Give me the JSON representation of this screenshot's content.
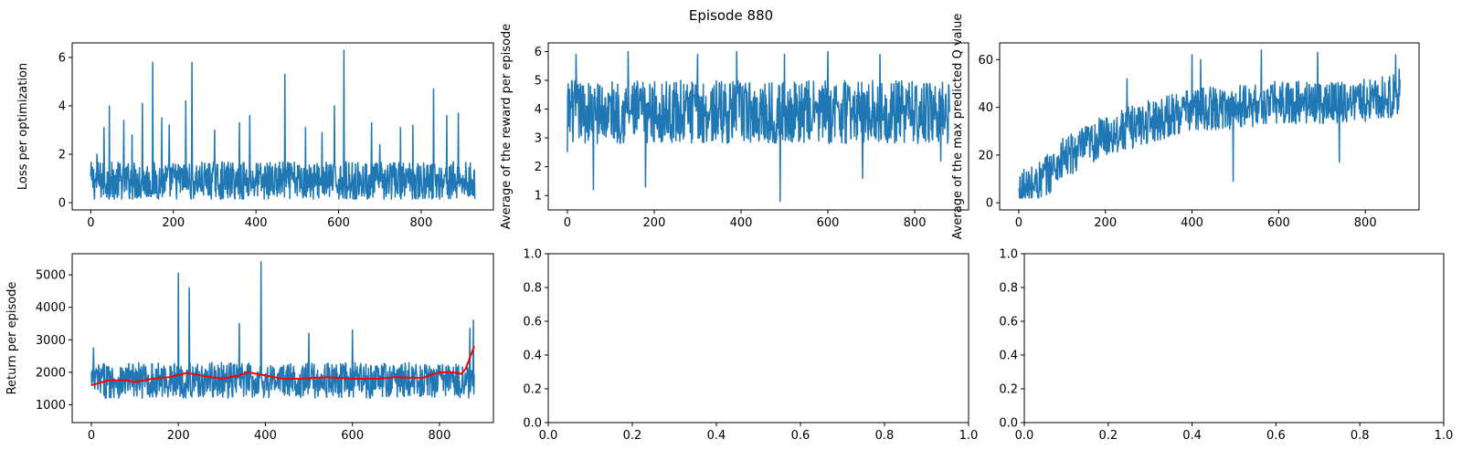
{
  "figure": {
    "suptitle": "Episode 880"
  },
  "colors": {
    "series": "#1f77b4",
    "moving_average": "#ff0000",
    "axis": "#000000"
  },
  "chart_data": [
    {
      "id": "loss",
      "type": "line",
      "title": "",
      "xlabel": "",
      "ylabel": "Loss per optimization",
      "xlim": [
        -45,
        975
      ],
      "ylim": [
        -0.3,
        6.6
      ],
      "xticks": [
        0,
        200,
        400,
        600,
        800
      ],
      "yticks": [
        0,
        2,
        4,
        6
      ],
      "series": [
        {
          "style": "noisy",
          "color": "#1f77b4",
          "x_range": [
            0,
            930
          ],
          "n": 931,
          "baseline": [
            [
              0,
              0.9
            ],
            [
              930,
              0.9
            ]
          ],
          "spread": 0.8,
          "min": 0.15,
          "max": 3.5,
          "spikes": [
            [
              15,
              2.0
            ],
            [
              32,
              3.1
            ],
            [
              45,
              4.0
            ],
            [
              80,
              3.4
            ],
            [
              100,
              2.8
            ],
            [
              125,
              4.1
            ],
            [
              150,
              5.8
            ],
            [
              172,
              3.5
            ],
            [
              190,
              3.2
            ],
            [
              230,
              4.2
            ],
            [
              245,
              5.8
            ],
            [
              300,
              3.0
            ],
            [
              360,
              3.3
            ],
            [
              385,
              3.6
            ],
            [
              470,
              5.3
            ],
            [
              520,
              3.1
            ],
            [
              560,
              2.9
            ],
            [
              590,
              4.0
            ],
            [
              613,
              6.3
            ],
            [
              680,
              3.3
            ],
            [
              700,
              2.4
            ],
            [
              750,
              3.1
            ],
            [
              780,
              3.2
            ],
            [
              830,
              4.7
            ],
            [
              862,
              3.6
            ],
            [
              890,
              3.7
            ],
            [
              928,
              1.3
            ]
          ]
        }
      ]
    },
    {
      "id": "reward",
      "type": "line",
      "title": "",
      "xlabel": "",
      "ylabel": "Average of the reward per episode",
      "xlim": [
        -44,
        924
      ],
      "ylim": [
        0.5,
        6.3
      ],
      "xticks": [
        0,
        200,
        400,
        600,
        800
      ],
      "yticks": [
        1,
        2,
        3,
        4,
        5,
        6
      ],
      "series": [
        {
          "style": "noisy",
          "color": "#1f77b4",
          "x_range": [
            0,
            880
          ],
          "n": 881,
          "baseline": [
            [
              0,
              3.9
            ],
            [
              880,
              3.9
            ]
          ],
          "spread": 1.1,
          "min": 1.6,
          "max": 5.9,
          "spikes": [
            [
              0,
              2.5
            ],
            [
              10,
              5.0
            ],
            [
              20,
              5.9
            ],
            [
              60,
              1.2
            ],
            [
              140,
              6.0
            ],
            [
              180,
              1.3
            ],
            [
              300,
              5.9
            ],
            [
              390,
              6.0
            ],
            [
              490,
              0.8
            ],
            [
              500,
              5.9
            ],
            [
              600,
              6.0
            ],
            [
              680,
              1.6
            ],
            [
              720,
              5.9
            ],
            [
              860,
              2.2
            ],
            [
              880,
              3.9
            ]
          ]
        }
      ]
    },
    {
      "id": "qvalue",
      "type": "line",
      "title": "",
      "xlabel": "",
      "ylabel": "Average of the max predicted Q value",
      "xlim": [
        -44,
        924
      ],
      "ylim": [
        -3,
        67
      ],
      "xticks": [
        0,
        200,
        400,
        600,
        800
      ],
      "yticks": [
        0,
        20,
        40,
        60
      ],
      "series": [
        {
          "style": "noisy",
          "color": "#1f77b4",
          "x_range": [
            0,
            880
          ],
          "n": 881,
          "baseline": [
            [
              0,
              4
            ],
            [
              50,
              9
            ],
            [
              100,
              18
            ],
            [
              200,
              28
            ],
            [
              300,
              34
            ],
            [
              400,
              39
            ],
            [
              500,
              40
            ],
            [
              600,
              42
            ],
            [
              700,
              42
            ],
            [
              800,
              43
            ],
            [
              880,
              45
            ]
          ],
          "spread": 9,
          "min": 2,
          "max": 64,
          "spikes": [
            [
              0,
              6
            ],
            [
              20,
              3
            ],
            [
              250,
              52
            ],
            [
              400,
              62
            ],
            [
              420,
              60
            ],
            [
              495,
              9
            ],
            [
              560,
              64
            ],
            [
              690,
              63
            ],
            [
              740,
              17
            ],
            [
              870,
              62
            ],
            [
              878,
              56
            ]
          ]
        }
      ]
    },
    {
      "id": "return",
      "type": "line",
      "title": "",
      "xlabel": "",
      "ylabel": "Return per episode",
      "xlim": [
        -44,
        924
      ],
      "ylim": [
        450,
        5650
      ],
      "xticks": [
        0,
        200,
        400,
        600,
        800
      ],
      "yticks": [
        1000,
        2000,
        3000,
        4000,
        5000
      ],
      "series": [
        {
          "style": "noisy",
          "color": "#1f77b4",
          "x_range": [
            0,
            880
          ],
          "n": 881,
          "baseline": [
            [
              0,
              1750
            ],
            [
              880,
              1750
            ]
          ],
          "spread": 550,
          "min": 650,
          "max": 2700,
          "spikes": [
            [
              5,
              2750
            ],
            [
              200,
              5050
            ],
            [
              225,
              4600
            ],
            [
              340,
              3500
            ],
            [
              390,
              5400
            ],
            [
              500,
              3200
            ],
            [
              600,
              3300
            ],
            [
              870,
              3350
            ],
            [
              878,
              3600
            ]
          ]
        },
        {
          "style": "smooth",
          "color": "#ff0000",
          "points": [
            [
              0,
              1600
            ],
            [
              40,
              1750
            ],
            [
              80,
              1750
            ],
            [
              100,
              1700
            ],
            [
              140,
              1800
            ],
            [
              180,
              1850
            ],
            [
              220,
              1980
            ],
            [
              260,
              1880
            ],
            [
              300,
              1800
            ],
            [
              340,
              1900
            ],
            [
              360,
              2000
            ],
            [
              400,
              1900
            ],
            [
              440,
              1800
            ],
            [
              480,
              1800
            ],
            [
              540,
              1850
            ],
            [
              600,
              1800
            ],
            [
              660,
              1800
            ],
            [
              700,
              1850
            ],
            [
              760,
              1820
            ],
            [
              800,
              2000
            ],
            [
              830,
              2000
            ],
            [
              850,
              1950
            ],
            [
              860,
              2100
            ],
            [
              880,
              2800
            ]
          ]
        }
      ]
    },
    {
      "id": "empty-1",
      "type": "line",
      "title": "",
      "xlabel": "",
      "ylabel": "",
      "xlim": [
        0,
        1
      ],
      "ylim": [
        0,
        1
      ],
      "xticks": [
        0.0,
        0.2,
        0.4,
        0.6,
        0.8,
        1.0
      ],
      "yticks": [
        0.0,
        0.2,
        0.4,
        0.6,
        0.8,
        1.0
      ],
      "tick_format": "fixed1",
      "series": []
    },
    {
      "id": "empty-2",
      "type": "line",
      "title": "",
      "xlabel": "",
      "ylabel": "",
      "xlim": [
        0,
        1
      ],
      "ylim": [
        0,
        1
      ],
      "xticks": [
        0.0,
        0.2,
        0.4,
        0.6,
        0.8,
        1.0
      ],
      "yticks": [
        0.0,
        0.2,
        0.4,
        0.6,
        0.8,
        1.0
      ],
      "tick_format": "fixed1",
      "series": []
    }
  ]
}
